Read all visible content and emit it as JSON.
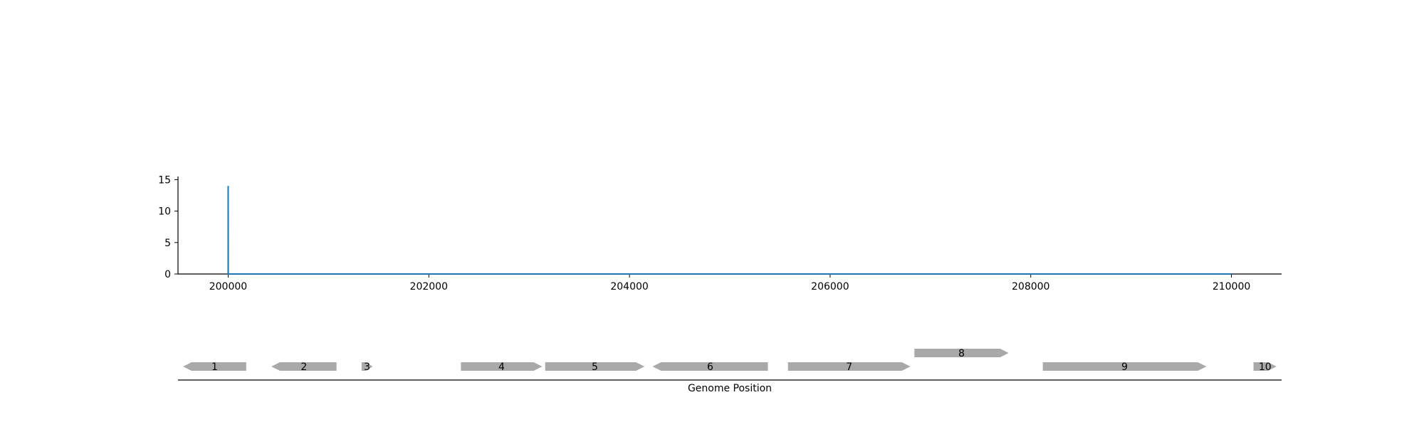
{
  "chart_data": [
    {
      "type": "line",
      "title": "",
      "xlabel": "",
      "ylabel": "",
      "xlim": [
        199500,
        210500
      ],
      "ylim": [
        0,
        15.5
      ],
      "x_ticks": [
        200000,
        202000,
        204000,
        206000,
        208000,
        210000
      ],
      "y_ticks": [
        0,
        5,
        10,
        15
      ],
      "grid": false,
      "color": "#1f77b4",
      "series": [
        {
          "x": [
            200000,
            200000,
            200001,
            210000
          ],
          "y": [
            0,
            14,
            0,
            0
          ]
        }
      ]
    },
    {
      "type": "gene-track",
      "xlabel": "Genome Position",
      "xlim": [
        199500,
        210500
      ],
      "color": "#a9a9a9",
      "genes": [
        {
          "label": "1",
          "start": 199550,
          "end": 200180,
          "strand": -1,
          "row": 0
        },
        {
          "label": "2",
          "start": 200430,
          "end": 201080,
          "strand": -1,
          "row": 0
        },
        {
          "label": "3",
          "start": 201330,
          "end": 201440,
          "strand": 1,
          "row": 0
        },
        {
          "label": "4",
          "start": 202320,
          "end": 203130,
          "strand": 1,
          "row": 0
        },
        {
          "label": "5",
          "start": 203160,
          "end": 204150,
          "strand": 1,
          "row": 0
        },
        {
          "label": "6",
          "start": 204230,
          "end": 205380,
          "strand": -1,
          "row": 0
        },
        {
          "label": "7",
          "start": 205580,
          "end": 206800,
          "strand": 1,
          "row": 0
        },
        {
          "label": "8",
          "start": 206840,
          "end": 207780,
          "strand": 1,
          "row": 1
        },
        {
          "label": "9",
          "start": 208120,
          "end": 209750,
          "strand": 1,
          "row": 0
        },
        {
          "label": "10",
          "start": 210220,
          "end": 210450,
          "strand": 1,
          "row": 0
        }
      ]
    }
  ]
}
